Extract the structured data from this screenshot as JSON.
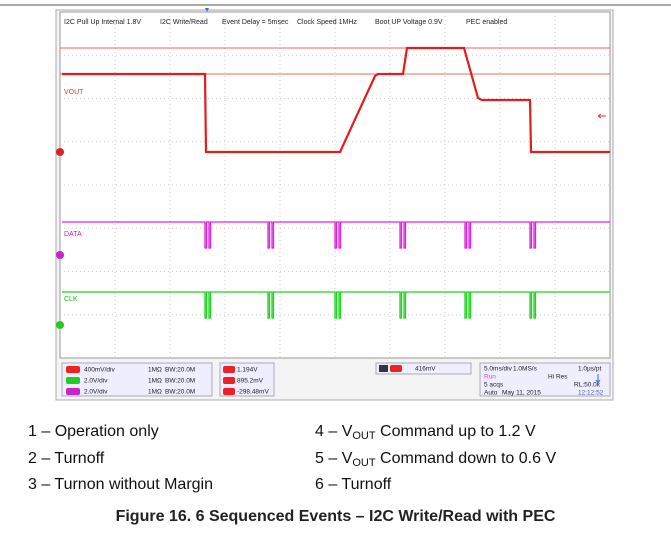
{
  "scope": {
    "annotations": [
      "I2C Pull Up Internal 1.8V",
      "I2C Write/Read",
      "Event Delay = 5msec",
      "Clock Speed 1MHz",
      "Boot UP Voltage 0.9V",
      "PEC enabled"
    ],
    "trace_labels": [
      "VOUT",
      "DATA",
      "CLK"
    ],
    "channels": [
      {
        "scale": "400mV/div",
        "impedance": "1MΩ",
        "bandwidth": "BW:20.0M"
      },
      {
        "scale": "2.0V/div",
        "impedance": "1MΩ",
        "bandwidth": "BW:20.0M"
      },
      {
        "scale": "2.0V/div",
        "impedance": "1MΩ",
        "bandwidth": "BW:20.0M"
      }
    ],
    "measurements": [
      "1.194V",
      "895.2mV",
      "-298.48mV"
    ],
    "trigger": "416mV",
    "timebase": {
      "row1": [
        "5.0ms/div",
        "1.0MS/s",
        "1.0µs/pt"
      ],
      "row2": [
        "Run",
        "Hi Res"
      ],
      "row3": [
        "5 acqs",
        "RL:50.0k"
      ],
      "row4": [
        "Auto",
        "May 11, 2015",
        "12:12:52"
      ]
    }
  },
  "legend": [
    {
      "text": "1 – Operation only"
    },
    {
      "text": "2 – Turnoff"
    },
    {
      "text": "3 – Turnon without Margin"
    },
    {
      "prefix": "4 – V",
      "sub": "OUT",
      "suffix": " Command up to 1.2 V"
    },
    {
      "prefix": "5 – V",
      "sub": "OUT",
      "suffix": " Command down to 0.6 V"
    },
    {
      "text": "6 – Turnoff"
    }
  ],
  "caption": "Figure 16. 6 Sequenced Events – I2C Write/Read with PEC"
}
